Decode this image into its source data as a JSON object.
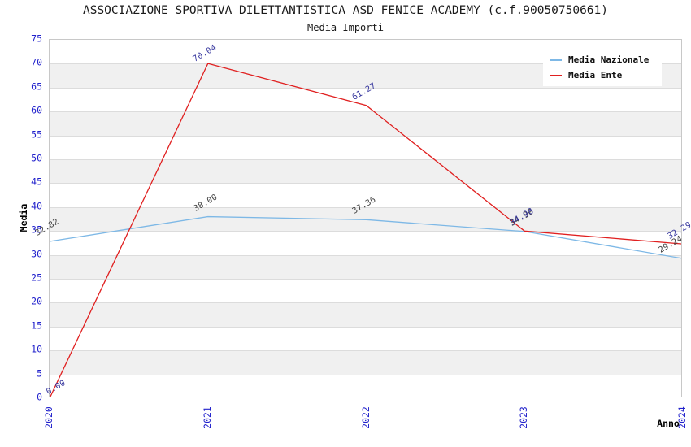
{
  "chart_data": {
    "type": "line",
    "title": "ASSOCIAZIONE SPORTIVA DILETTANTISTICA ASD FENICE ACADEMY (c.f.90050750661)",
    "subtitle": "Media Importi",
    "xlabel": "Anno",
    "ylabel": "Media",
    "categories": [
      "2020",
      "2021",
      "2022",
      "2023",
      "2024"
    ],
    "y_ticks": [
      0,
      5,
      10,
      15,
      20,
      25,
      30,
      35,
      40,
      45,
      50,
      55,
      60,
      65,
      70,
      75
    ],
    "ylim": [
      0,
      75
    ],
    "grid": "horizontal-bands",
    "legend": {
      "position": "top-right",
      "entries": [
        "Media Nazionale",
        "Media Ente"
      ]
    },
    "series": [
      {
        "name": "Media Nazionale",
        "color": "#7db8e6",
        "label_color": "#3d3d3d",
        "values": [
          32.82,
          38.0,
          37.36,
          34.9,
          29.24
        ]
      },
      {
        "name": "Media Ente",
        "color": "#e02020",
        "label_color": "#36369e",
        "values": [
          0.0,
          70.04,
          61.27,
          34.98,
          32.29
        ]
      }
    ],
    "colors": {
      "tick_label": "#2222cc",
      "axis_label": "#000000",
      "band": "#f0f0f0",
      "gridline": "#dcdcdc",
      "plot_border": "#c8c8c8",
      "title": "#1a1a1a"
    }
  }
}
